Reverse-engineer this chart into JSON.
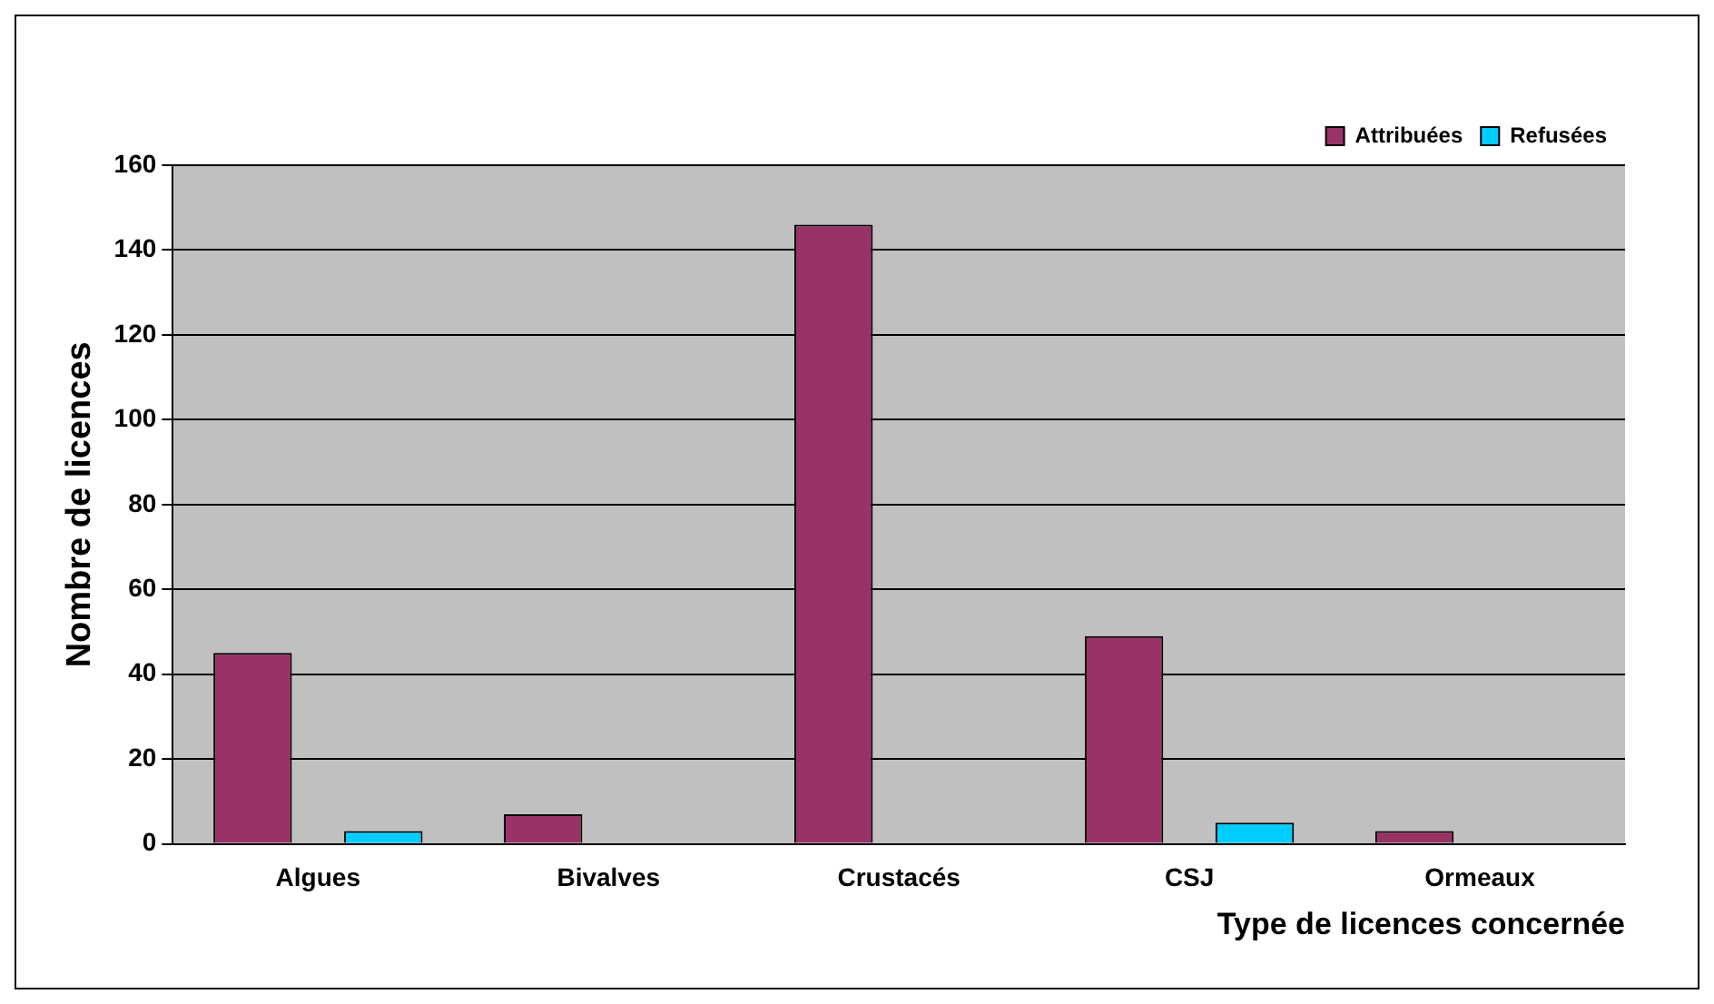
{
  "chart_data": {
    "type": "bar",
    "xlabel": "Type de licences concernée",
    "ylabel": "Nombre de licences",
    "categories": [
      "Algues",
      "Bivalves",
      "Crustacés",
      "CSJ",
      "Ormeaux"
    ],
    "series": [
      {
        "name": "Attribuées",
        "color": "#993366",
        "values": [
          45,
          7,
          146,
          49,
          3
        ]
      },
      {
        "name": "Refusées",
        "color": "#00ccff",
        "values": [
          3,
          0,
          0,
          5,
          0
        ]
      }
    ],
    "ylim": [
      0,
      160
    ],
    "yticks": [
      0,
      20,
      40,
      60,
      80,
      100,
      120,
      140,
      160
    ],
    "grid": "y",
    "legend": "top right"
  }
}
